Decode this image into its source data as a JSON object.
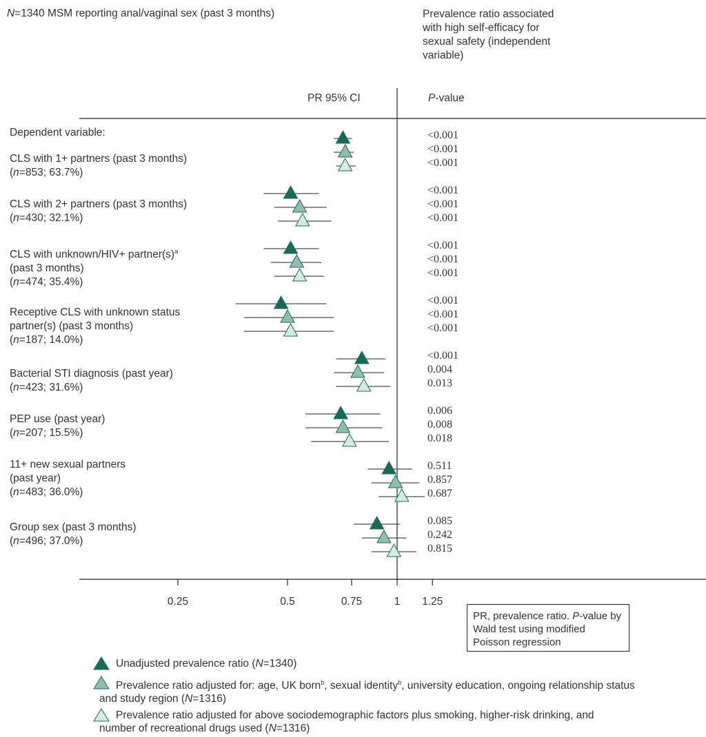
{
  "header": {
    "sample_prefix": "N",
    "sample_text": "=1340 MSM reporting anal/vaginal sex (past 3 months)",
    "right_title_lines": [
      "Prevalence ratio associated",
      "with high self-efficacy for",
      "sexual safety (independent",
      "variable)"
    ]
  },
  "columns": {
    "pr_ci": "PR 95% CI",
    "p_prefix": "P",
    "p_suffix": "-value"
  },
  "dependent_label": "Dependent variable:",
  "colors": {
    "unadjusted": "#1a6b55",
    "adjusted1": "#8fbfaa",
    "adjusted2": "#d4ebe1",
    "line": "#222222"
  },
  "chart_data": {
    "type": "forest",
    "x_scale": "log",
    "xlim": [
      0.18,
      2.6
    ],
    "x_ticks": [
      "0.25",
      "0.5",
      "0.75",
      "1",
      "1.25"
    ],
    "reference_line": 1,
    "series": [
      {
        "name": "Unadjusted prevalence ratio (N=1340)"
      },
      {
        "name": "Prevalence ratio adjusted for: age, UK born, sexual identity, university education, ongoing relationship status and study region (N=1316)"
      },
      {
        "name": "Prevalence ratio adjusted for above sociodemographic factors plus smoking, higher-risk drinking, and number of recreational drugs used (N=1316)"
      }
    ],
    "rows": [
      {
        "label_lines": [
          "CLS with 1+ partners (past 3 months)"
        ],
        "n_text": "=853; 63.7%)",
        "estimates": [
          {
            "pr": 0.71,
            "lo": 0.67,
            "hi": 0.75,
            "p": "<0.001"
          },
          {
            "pr": 0.72,
            "lo": 0.67,
            "hi": 0.76,
            "p": "<0.001"
          },
          {
            "pr": 0.72,
            "lo": 0.68,
            "hi": 0.77,
            "p": "<0.001"
          }
        ]
      },
      {
        "label_lines": [
          "CLS with 2+ partners (past 3 months)"
        ],
        "n_text": "=430; 32.1%)",
        "estimates": [
          {
            "pr": 0.51,
            "lo": 0.43,
            "hi": 0.61,
            "p": "<0.001"
          },
          {
            "pr": 0.54,
            "lo": 0.46,
            "hi": 0.64,
            "p": "<0.001"
          },
          {
            "pr": 0.55,
            "lo": 0.47,
            "hi": 0.66,
            "p": "<0.001"
          }
        ]
      },
      {
        "label_lines": [
          "CLS with unknown/HIV+ partner(s)",
          "(past 3 months)"
        ],
        "label_sup": "a",
        "n_text": "=474; 35.4%)",
        "estimates": [
          {
            "pr": 0.51,
            "lo": 0.43,
            "hi": 0.61,
            "p": "<0.001"
          },
          {
            "pr": 0.53,
            "lo": 0.45,
            "hi": 0.62,
            "p": "<0.001"
          },
          {
            "pr": 0.54,
            "lo": 0.46,
            "hi": 0.63,
            "p": "<0.001"
          }
        ]
      },
      {
        "label_lines": [
          "Receptive CLS with unknown status",
          "partner(s) (past 3 months)"
        ],
        "n_text": "=187; 14.0%)",
        "estimates": [
          {
            "pr": 0.48,
            "lo": 0.36,
            "hi": 0.64,
            "p": "<0.001"
          },
          {
            "pr": 0.5,
            "lo": 0.38,
            "hi": 0.67,
            "p": "<0.001"
          },
          {
            "pr": 0.51,
            "lo": 0.38,
            "hi": 0.67,
            "p": "<0.001"
          }
        ]
      },
      {
        "label_lines": [
          "Bacterial STI diagnosis (past year)"
        ],
        "n_text": "=423; 31.6%)",
        "estimates": [
          {
            "pr": 0.8,
            "lo": 0.68,
            "hi": 0.93,
            "p": "<0.001"
          },
          {
            "pr": 0.78,
            "lo": 0.67,
            "hi": 0.92,
            "p": "0.004"
          },
          {
            "pr": 0.81,
            "lo": 0.68,
            "hi": 0.96,
            "p": "0.013"
          }
        ]
      },
      {
        "label_lines": [
          "PEP use (past year)"
        ],
        "n_text": "=207; 15.5%)",
        "estimates": [
          {
            "pr": 0.7,
            "lo": 0.56,
            "hi": 0.9,
            "p": "0.006"
          },
          {
            "pr": 0.71,
            "lo": 0.56,
            "hi": 0.91,
            "p": "0.008"
          },
          {
            "pr": 0.74,
            "lo": 0.58,
            "hi": 0.95,
            "p": "0.018"
          }
        ]
      },
      {
        "label_lines": [
          "11+ new sexual partners",
          "(past year)"
        ],
        "n_text": "=483; 36.0%)",
        "estimates": [
          {
            "pr": 0.95,
            "lo": 0.83,
            "hi": 1.1,
            "p": "0.511"
          },
          {
            "pr": 0.99,
            "lo": 0.85,
            "hi": 1.15,
            "p": "0.857"
          },
          {
            "pr": 1.03,
            "lo": 0.89,
            "hi": 1.19,
            "p": "0.687"
          }
        ]
      },
      {
        "label_lines": [
          "Group sex (past 3 months)"
        ],
        "n_text": "=496; 37.0%)",
        "estimates": [
          {
            "pr": 0.88,
            "lo": 0.76,
            "hi": 1.02,
            "p": "0.085"
          },
          {
            "pr": 0.92,
            "lo": 0.8,
            "hi": 1.06,
            "p": "0.242"
          },
          {
            "pr": 0.98,
            "lo": 0.85,
            "hi": 1.13,
            "p": "0.815"
          }
        ]
      }
    ]
  },
  "note": {
    "line1": "PR, prevalence ratio. ",
    "p": "P",
    "line2": "-value by Wald test using modified Poisson regression"
  },
  "legend": {
    "l1_a": "Unadjusted prevalence ratio (",
    "l1_n": "N",
    "l1_b": "=1340)",
    "l2_a": "Prevalence ratio adjusted for: age, UK born",
    "l2_sup1": "b",
    "l2_b": ", sexual identity",
    "l2_sup2": "b",
    "l2_c": ", university education, ongoing relationship status",
    "l2_d": "and study region (",
    "l2_n": "N",
    "l2_e": "=1316)",
    "l3_a": "Prevalence ratio adjusted for above sociodemographic factors plus smoking, higher-risk drinking, and",
    "l3_b": "number of recreational drugs used (",
    "l3_n": "N",
    "l3_c": "=1316)"
  }
}
